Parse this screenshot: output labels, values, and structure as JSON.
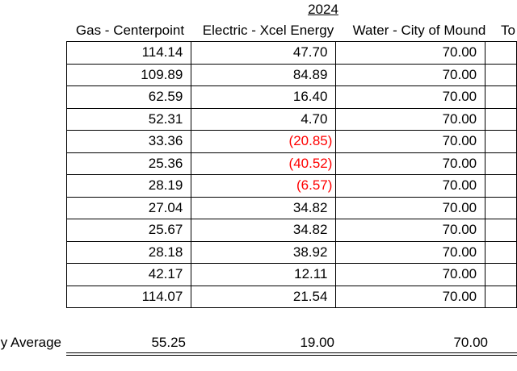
{
  "year": "2024",
  "headers": {
    "gas": "Gas - Centerpoint",
    "electric": "Electric - Xcel Energy",
    "water": "Water - City of Mound",
    "total": "To"
  },
  "rows": [
    {
      "gas": "114.14",
      "electric": "47.70",
      "water": "70.00",
      "electric_negative": false
    },
    {
      "gas": "109.89",
      "electric": "84.89",
      "water": "70.00",
      "electric_negative": false
    },
    {
      "gas": "62.59",
      "electric": "16.40",
      "water": "70.00",
      "electric_negative": false
    },
    {
      "gas": "52.31",
      "electric": "4.70",
      "water": "70.00",
      "electric_negative": false
    },
    {
      "gas": "33.36",
      "electric": "(20.85)",
      "water": "70.00",
      "electric_negative": true
    },
    {
      "gas": "25.36",
      "electric": "(40.52)",
      "water": "70.00",
      "electric_negative": true
    },
    {
      "gas": "28.19",
      "electric": "(6.57)",
      "water": "70.00",
      "electric_negative": true
    },
    {
      "gas": "27.04",
      "electric": "34.82",
      "water": "70.00",
      "electric_negative": false
    },
    {
      "gas": "25.67",
      "electric": "34.82",
      "water": "70.00",
      "electric_negative": false
    },
    {
      "gas": "28.18",
      "electric": "38.92",
      "water": "70.00",
      "electric_negative": false
    },
    {
      "gas": "42.17",
      "electric": "12.11",
      "water": "70.00",
      "electric_negative": false
    },
    {
      "gas": "114.07",
      "electric": "21.54",
      "water": "70.00",
      "electric_negative": false
    }
  ],
  "average": {
    "label": "y Average",
    "gas": "55.25",
    "electric": "19.00",
    "water": "70.00"
  },
  "colors": {
    "negative": "#ff0000",
    "text": "#000000",
    "grid": "#000000"
  }
}
